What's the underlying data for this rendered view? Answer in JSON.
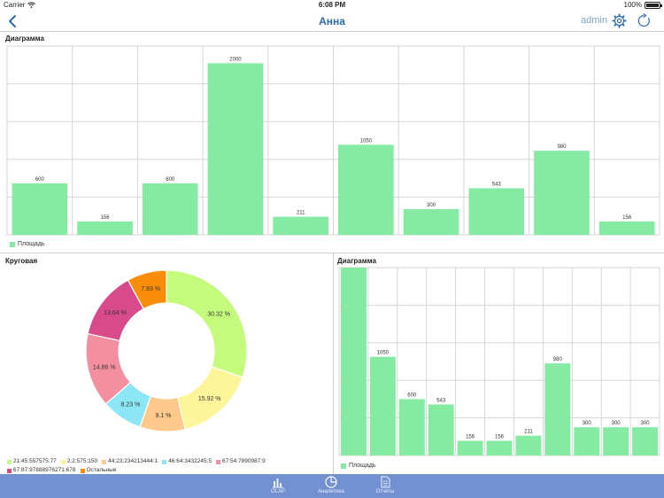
{
  "status": {
    "carrier": "Carrier",
    "time": "6:08 PM",
    "battery": "100%"
  },
  "nav": {
    "title": "Анна",
    "user": "admin"
  },
  "panels": {
    "top_title": "Диаграмма",
    "pie_title": "Круговая",
    "right_title": "Диаграмма",
    "legend_label": "Площадь"
  },
  "colors": {
    "bar": "#86eba2",
    "accent": "#2d6aa8",
    "tabbar": "#7391d0"
  },
  "pie_legend": [
    {
      "label": "21:45:557575:77",
      "color": "#c5fb7d"
    },
    {
      "label": "2:2:575:150",
      "color": "#fef59a"
    },
    {
      "label": "44:23:234213444:1",
      "color": "#fec98a"
    },
    {
      "label": "46:64:3432245:5",
      "color": "#8de6f6"
    },
    {
      "label": "67:54:7890987:9",
      "color": "#f48fa0"
    },
    {
      "label": "67:87:97888976271:678",
      "color": "#d84a8a"
    },
    {
      "label": "Остальные",
      "color": "#f98d09"
    }
  ],
  "chart_data": [
    {
      "type": "bar",
      "title": "Диаграмма",
      "series": [
        {
          "name": "Площадь",
          "values": [
            600,
            156,
            600,
            2000,
            211,
            1050,
            300,
            543,
            980,
            156
          ]
        }
      ],
      "ylim": [
        0,
        2200
      ],
      "grid": true
    },
    {
      "type": "pie",
      "title": "Круговая",
      "labels": [
        "21:45:557575:77",
        "2:2:575:150",
        "44:23:234213444:1",
        "46:64:3432245:5",
        "67:54:7890987:9",
        "67:87:97888976271:678",
        "Остальные"
      ],
      "values": [
        30.32,
        15.92,
        9.1,
        8.23,
        14.86,
        13.64,
        7.93
      ],
      "value_labels": [
        "30.32 %",
        "15.92 %",
        "9.1 %",
        "8.23 %",
        "14.86 %",
        "13.64 %",
        "7.93 %"
      ]
    },
    {
      "type": "bar",
      "title": "Диаграмма",
      "series": [
        {
          "name": "Площадь",
          "values": [
            2000,
            1050,
            600,
            543,
            156,
            156,
            211,
            980,
            300,
            300,
            300
          ]
        }
      ],
      "ylim": [
        0,
        2000
      ],
      "grid": true
    }
  ],
  "tabs": [
    {
      "label": "OLAP",
      "icon": "bar-chart-icon"
    },
    {
      "label": "Аналитика",
      "icon": "pie-chart-icon"
    },
    {
      "label": "Отчеты",
      "icon": "document-icon"
    }
  ]
}
